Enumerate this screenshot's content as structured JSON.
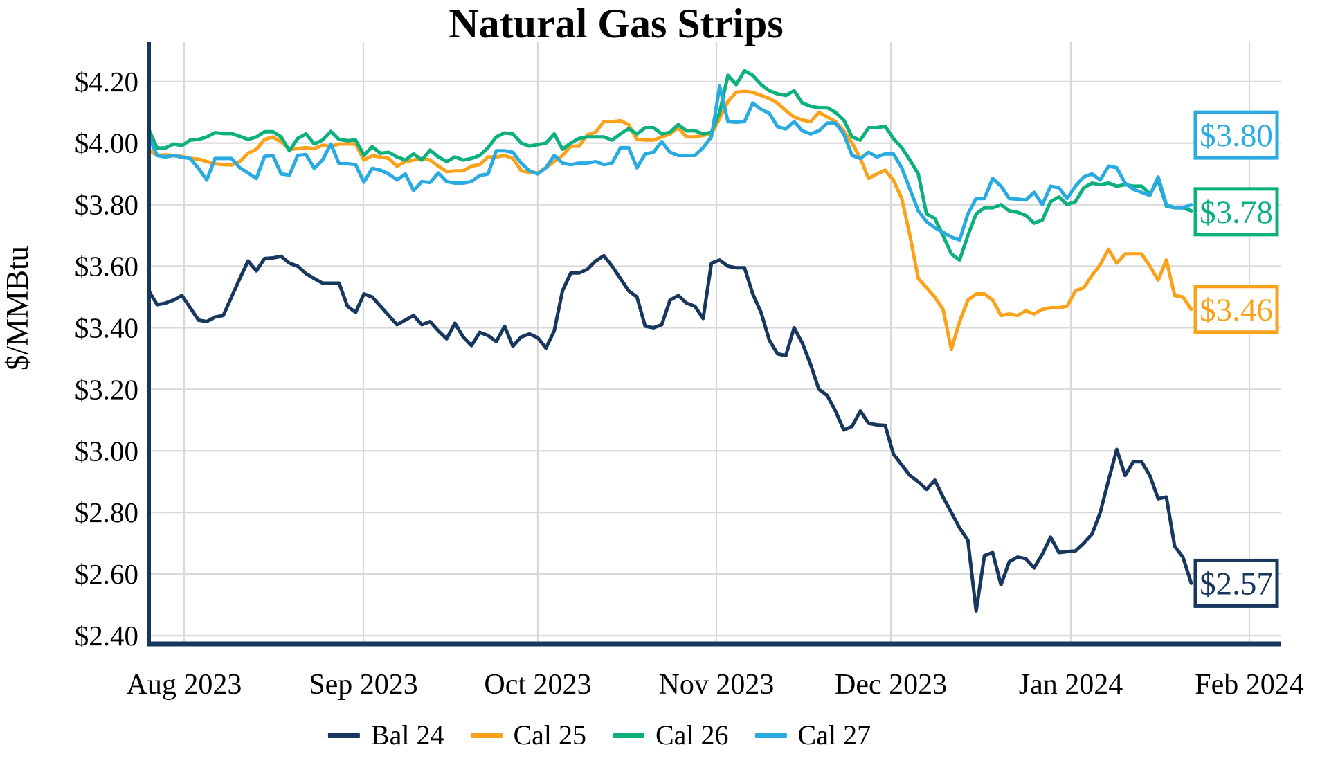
{
  "title": "Natural Gas Strips",
  "y_axis_label": "$/MMBtu",
  "chart_data": {
    "type": "line",
    "title": "Natural Gas Strips",
    "xlabel": "",
    "ylabel": "$/MMBtu",
    "grid": true,
    "legend_position": "bottom",
    "background": "#ffffff",
    "gridline_color": "#d9d9d9",
    "axis_color": "#17375E",
    "text_color": "#000000",
    "ylim": [
      2.373,
      4.33
    ],
    "y_ticks": [
      {
        "value": 2.4,
        "label": "$2.40"
      },
      {
        "value": 2.6,
        "label": "$2.60"
      },
      {
        "value": 2.8,
        "label": "$2.80"
      },
      {
        "value": 3.0,
        "label": "$3.00"
      },
      {
        "value": 3.2,
        "label": "$3.20"
      },
      {
        "value": 3.4,
        "label": "$3.40"
      },
      {
        "value": 3.6,
        "label": "$3.60"
      },
      {
        "value": 3.8,
        "label": "$3.80"
      },
      {
        "value": 4.0,
        "label": "$4.00"
      },
      {
        "value": 4.2,
        "label": "$4.20"
      }
    ],
    "x_ticks": [
      {
        "label": "Aug 2023",
        "pos": 0.0312
      },
      {
        "label": "Sep 2023",
        "pos": 0.1896
      },
      {
        "label": "Oct 2023",
        "pos": 0.3437
      },
      {
        "label": "Nov 2023",
        "pos": 0.5015
      },
      {
        "label": "Dec 2023",
        "pos": 0.6557
      },
      {
        "label": "Jan 2024",
        "pos": 0.8147
      },
      {
        "label": "Feb 2024",
        "pos": 0.9725
      }
    ],
    "x_span_fraction": 0.9211,
    "x_range_note": "daily prices, late Jul 2023 through late Jan 2024",
    "series": [
      {
        "name": "Bal 24",
        "color": "#17375E",
        "end_label": "$2.57",
        "end_label_level": 2.57,
        "values": [
          3.52,
          3.475,
          3.48,
          3.49,
          3.505,
          3.465,
          3.425,
          3.42,
          3.435,
          3.44,
          3.5,
          3.56,
          3.617,
          3.585,
          3.625,
          3.627,
          3.632,
          3.61,
          3.6,
          3.576,
          3.56,
          3.545,
          3.545,
          3.545,
          3.47,
          3.45,
          3.51,
          3.5,
          3.47,
          3.44,
          3.41,
          3.425,
          3.44,
          3.41,
          3.42,
          3.39,
          3.364,
          3.415,
          3.37,
          3.342,
          3.385,
          3.375,
          3.355,
          3.405,
          3.34,
          3.37,
          3.38,
          3.368,
          3.334,
          3.39,
          3.52,
          3.578,
          3.578,
          3.59,
          3.617,
          3.634,
          3.6,
          3.56,
          3.52,
          3.5,
          3.405,
          3.4,
          3.41,
          3.49,
          3.505,
          3.48,
          3.47,
          3.43,
          3.61,
          3.62,
          3.6,
          3.595,
          3.595,
          3.51,
          3.45,
          3.36,
          3.315,
          3.31,
          3.4,
          3.35,
          3.28,
          3.2,
          3.18,
          3.13,
          3.068,
          3.08,
          3.13,
          3.09,
          3.085,
          3.083,
          2.99,
          2.955,
          2.92,
          2.9,
          2.875,
          2.905,
          2.85,
          2.8,
          2.75,
          2.71,
          2.48,
          2.66,
          2.67,
          2.565,
          2.64,
          2.655,
          2.65,
          2.62,
          2.665,
          2.72,
          2.67,
          2.673,
          2.675,
          2.7,
          2.73,
          2.8,
          2.905,
          3.005,
          2.92,
          2.965,
          2.965,
          2.92,
          2.845,
          2.85,
          2.69,
          2.655,
          2.57
        ]
      },
      {
        "name": "Cal 25",
        "color": "#FAA21B",
        "end_label": "$3.46",
        "end_label_level": 3.46,
        "values": [
          3.978,
          3.96,
          3.962,
          3.96,
          3.957,
          3.95,
          3.948,
          3.94,
          3.933,
          3.93,
          3.929,
          3.94,
          3.967,
          3.98,
          4.012,
          4.02,
          4.004,
          3.98,
          3.982,
          3.985,
          3.982,
          3.993,
          3.989,
          3.997,
          3.997,
          3.997,
          3.945,
          3.959,
          3.955,
          3.95,
          3.925,
          3.94,
          3.945,
          3.95,
          3.945,
          3.925,
          3.907,
          3.91,
          3.91,
          3.925,
          3.93,
          3.955,
          3.955,
          3.96,
          3.95,
          3.91,
          3.905,
          3.903,
          3.92,
          3.94,
          3.96,
          3.99,
          3.99,
          4.027,
          4.035,
          4.07,
          4.07,
          4.073,
          4.06,
          4.012,
          4.01,
          4.01,
          4.02,
          4.03,
          4.05,
          4.02,
          4.02,
          4.025,
          4.03,
          4.08,
          4.135,
          4.165,
          4.168,
          4.165,
          4.155,
          4.145,
          4.13,
          4.105,
          4.085,
          4.075,
          4.07,
          4.1,
          4.085,
          4.07,
          4.04,
          4.0,
          3.95,
          3.885,
          3.9,
          3.912,
          3.88,
          3.82,
          3.7,
          3.56,
          3.53,
          3.5,
          3.46,
          3.33,
          3.42,
          3.49,
          3.51,
          3.51,
          3.49,
          3.44,
          3.445,
          3.44,
          3.455,
          3.445,
          3.46,
          3.465,
          3.465,
          3.47,
          3.52,
          3.53,
          3.57,
          3.605,
          3.655,
          3.61,
          3.64,
          3.64,
          3.64,
          3.6,
          3.555,
          3.62,
          3.505,
          3.5,
          3.46
        ]
      },
      {
        "name": "Cal 26",
        "color": "#0CB07D",
        "end_label": "$3.78",
        "end_label_level": 3.777,
        "values": [
          4.044,
          3.984,
          3.984,
          3.997,
          3.992,
          4.01,
          4.012,
          4.02,
          4.034,
          4.031,
          4.031,
          4.022,
          4.012,
          4.02,
          4.037,
          4.037,
          4.02,
          3.975,
          4.015,
          4.03,
          3.997,
          4.01,
          4.038,
          4.012,
          4.008,
          4.01,
          3.96,
          3.988,
          3.967,
          3.97,
          3.955,
          3.945,
          3.965,
          3.945,
          3.977,
          3.955,
          3.94,
          3.955,
          3.945,
          3.95,
          3.96,
          3.985,
          4.02,
          4.033,
          4.03,
          4.0,
          3.99,
          3.995,
          4.0,
          4.03,
          3.98,
          4.0,
          4.015,
          4.02,
          4.02,
          4.02,
          4.01,
          4.03,
          4.047,
          4.03,
          4.05,
          4.05,
          4.03,
          4.035,
          4.06,
          4.04,
          4.04,
          4.03,
          4.035,
          4.1,
          4.22,
          4.19,
          4.235,
          4.22,
          4.19,
          4.17,
          4.16,
          4.155,
          4.17,
          4.13,
          4.12,
          4.115,
          4.115,
          4.1,
          4.075,
          4.02,
          4.01,
          4.05,
          4.05,
          4.055,
          4.015,
          3.985,
          3.945,
          3.9,
          3.77,
          3.755,
          3.7,
          3.64,
          3.62,
          3.7,
          3.77,
          3.79,
          3.79,
          3.8,
          3.78,
          3.775,
          3.765,
          3.74,
          3.75,
          3.81,
          3.825,
          3.8,
          3.81,
          3.855,
          3.87,
          3.865,
          3.87,
          3.86,
          3.865,
          3.86,
          3.86,
          3.835,
          3.88,
          3.795,
          3.79,
          3.79,
          3.78
        ]
      },
      {
        "name": "Cal 27",
        "color": "#29ABE2",
        "end_label": "$3.80",
        "end_label_level": 4.026,
        "values": [
          4.02,
          3.96,
          3.955,
          3.96,
          3.954,
          3.95,
          3.918,
          3.88,
          3.95,
          3.95,
          3.95,
          3.92,
          3.903,
          3.885,
          3.957,
          3.96,
          3.9,
          3.896,
          3.96,
          3.963,
          3.918,
          3.945,
          3.997,
          3.933,
          3.933,
          3.93,
          3.873,
          3.918,
          3.912,
          3.9,
          3.88,
          3.9,
          3.846,
          3.875,
          3.872,
          3.903,
          3.875,
          3.87,
          3.87,
          3.875,
          3.895,
          3.9,
          3.975,
          3.975,
          3.97,
          3.935,
          3.91,
          3.9,
          3.92,
          3.96,
          3.935,
          3.93,
          3.935,
          3.935,
          3.94,
          3.93,
          3.935,
          3.985,
          3.985,
          3.92,
          3.965,
          3.97,
          4.005,
          3.97,
          3.96,
          3.96,
          3.96,
          3.985,
          4.02,
          4.185,
          4.07,
          4.068,
          4.07,
          4.13,
          4.11,
          4.097,
          4.053,
          4.046,
          4.07,
          4.04,
          4.03,
          4.04,
          4.065,
          4.065,
          4.03,
          3.96,
          3.95,
          3.97,
          3.955,
          3.965,
          3.965,
          3.92,
          3.85,
          3.78,
          3.745,
          3.725,
          3.71,
          3.695,
          3.685,
          3.77,
          3.82,
          3.82,
          3.885,
          3.86,
          3.82,
          3.818,
          3.815,
          3.84,
          3.8,
          3.86,
          3.855,
          3.82,
          3.86,
          3.89,
          3.9,
          3.88,
          3.925,
          3.92,
          3.87,
          3.85,
          3.84,
          3.83,
          3.89,
          3.8,
          3.79,
          3.79,
          3.8
        ]
      }
    ]
  }
}
